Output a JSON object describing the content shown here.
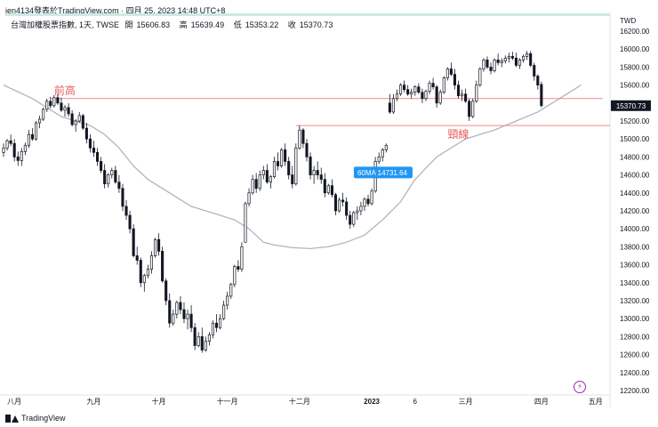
{
  "header": {
    "publisher": "jen4134發表於TradingView.com",
    "timestamp": "四月 25, 2023 14:48 UTC+8"
  },
  "legend": {
    "symbol": "台灣加權股票指數, 1天, TWSE",
    "open_label": "開",
    "open_value": "15606.83",
    "high_label": "高",
    "high_value": "15639.49",
    "low_label": "低",
    "low_value": "15353.22",
    "close_label": "收",
    "close_value": "15370.73"
  },
  "currency": "TWD",
  "footer": {
    "brand": "TradingView"
  },
  "icons": {
    "brand_logo": "tradingview-logo-icon",
    "alert": "lightning-icon"
  },
  "colors": {
    "up": "#ffffff",
    "down": "#131722",
    "wick": "#131722",
    "ma_line": "#b2b5be",
    "hline": "#f08a8a",
    "hline_text": "#e55b5b",
    "ma_label_bg": "#2196f3",
    "price_label_bg": "#131722"
  },
  "chart_data": {
    "type": "candlestick",
    "y_axis": {
      "ticks": [
        12200,
        12400,
        12600,
        12800,
        13000,
        13200,
        13400,
        13600,
        13800,
        14000,
        14200,
        14400,
        14600,
        14800,
        15000,
        15200,
        15400,
        15600,
        15800,
        16000,
        16200
      ],
      "ylim": [
        12150,
        16250
      ]
    },
    "x_axis": {
      "ticks": [
        {
          "label": "八月",
          "idx": 3
        },
        {
          "label": "九月",
          "idx": 25
        },
        {
          "label": "十月",
          "idx": 43
        },
        {
          "label": "十一月",
          "idx": 62
        },
        {
          "label": "十二月",
          "idx": 82
        },
        {
          "label": "2023",
          "idx": 102
        },
        {
          "label": "6",
          "idx": 114
        },
        {
          "label": "三月",
          "idx": 128
        },
        {
          "label": "四月",
          "idx": 149
        },
        {
          "label": "五月",
          "idx": 164
        }
      ],
      "xlim": [
        0,
        168
      ]
    },
    "last_price": {
      "value": 15370.73,
      "label": "15370.73"
    },
    "moving_average": {
      "name": "60MA",
      "value_label": "14731.64",
      "value": 14731.64,
      "label_idx": 100,
      "points": [
        [
          0,
          15600
        ],
        [
          8,
          15450
        ],
        [
          12,
          15350
        ],
        [
          16,
          15250
        ],
        [
          20,
          15200
        ],
        [
          24,
          15150
        ],
        [
          28,
          15050
        ],
        [
          32,
          14900
        ],
        [
          36,
          14700
        ],
        [
          40,
          14550
        ],
        [
          44,
          14450
        ],
        [
          48,
          14350
        ],
        [
          52,
          14250
        ],
        [
          56,
          14200
        ],
        [
          60,
          14150
        ],
        [
          64,
          14100
        ],
        [
          68,
          14000
        ],
        [
          72,
          13850
        ],
        [
          75,
          13820
        ],
        [
          80,
          13790
        ],
        [
          85,
          13780
        ],
        [
          90,
          13800
        ],
        [
          95,
          13850
        ],
        [
          100,
          13930
        ],
        [
          105,
          14100
        ],
        [
          110,
          14300
        ],
        [
          114,
          14550
        ],
        [
          120,
          14800
        ],
        [
          128,
          15000
        ],
        [
          136,
          15100
        ],
        [
          142,
          15200
        ],
        [
          148,
          15300
        ],
        [
          154,
          15450
        ],
        [
          158,
          15550
        ],
        [
          160,
          15600
        ]
      ]
    },
    "hlines": [
      {
        "label": "前高",
        "value": 15450,
        "from_idx": 13,
        "to_idx": 166,
        "label_idx": 14
      },
      {
        "label": "頸線",
        "value": 15150,
        "from_idx": 81,
        "to_idx": 171,
        "label_idx": 123
      }
    ],
    "candles": [
      [
        0,
        14850,
        14950,
        14800,
        14900
      ],
      [
        1,
        14900,
        15000,
        14870,
        14980
      ],
      [
        2,
        14980,
        15050,
        14920,
        14950
      ],
      [
        3,
        14950,
        15000,
        14750,
        14800
      ],
      [
        4,
        14800,
        14860,
        14700,
        14760
      ],
      [
        5,
        14760,
        14900,
        14700,
        14860
      ],
      [
        6,
        14860,
        14960,
        14820,
        14930
      ],
      [
        7,
        14930,
        15100,
        14900,
        15050
      ],
      [
        8,
        15050,
        15120,
        14980,
        15000
      ],
      [
        9,
        15000,
        15200,
        14980,
        15180
      ],
      [
        10,
        15180,
        15260,
        15120,
        15220
      ],
      [
        11,
        15220,
        15350,
        15200,
        15330
      ],
      [
        12,
        15330,
        15450,
        15300,
        15420
      ],
      [
        13,
        15420,
        15470,
        15340,
        15370
      ],
      [
        14,
        15370,
        15490,
        15350,
        15460
      ],
      [
        15,
        15460,
        15500,
        15380,
        15400
      ],
      [
        16,
        15400,
        15460,
        15300,
        15320
      ],
      [
        17,
        15320,
        15380,
        15250,
        15350
      ],
      [
        18,
        15350,
        15400,
        15250,
        15280
      ],
      [
        19,
        15280,
        15320,
        15140,
        15160
      ],
      [
        20,
        15160,
        15220,
        15080,
        15200
      ],
      [
        21,
        15200,
        15300,
        15180,
        15260
      ],
      [
        22,
        15260,
        15280,
        15100,
        15120
      ],
      [
        23,
        15120,
        15180,
        14950,
        15000
      ],
      [
        24,
        15000,
        15050,
        14850,
        14900
      ],
      [
        25,
        14900,
        14980,
        14800,
        14850
      ],
      [
        26,
        14850,
        14900,
        14700,
        14750
      ],
      [
        27,
        14750,
        14800,
        14620,
        14650
      ],
      [
        28,
        14650,
        14720,
        14450,
        14500
      ],
      [
        29,
        14500,
        14620,
        14460,
        14600
      ],
      [
        30,
        14600,
        14680,
        14560,
        14650
      ],
      [
        31,
        14650,
        14700,
        14500,
        14520
      ],
      [
        32,
        14520,
        14600,
        14400,
        14450
      ],
      [
        33,
        14450,
        14500,
        14200,
        14250
      ],
      [
        34,
        14250,
        14320,
        14100,
        14150
      ],
      [
        35,
        14150,
        14200,
        13950,
        14000
      ],
      [
        36,
        14000,
        14050,
        13680,
        13700
      ],
      [
        37,
        13700,
        13800,
        13600,
        13650
      ],
      [
        38,
        13650,
        13680,
        13350,
        13400
      ],
      [
        39,
        13400,
        13500,
        13300,
        13480
      ],
      [
        40,
        13480,
        13600,
        13450,
        13550
      ],
      [
        41,
        13550,
        13750,
        13500,
        13700
      ],
      [
        42,
        13700,
        13900,
        13680,
        13880
      ],
      [
        43,
        13880,
        13950,
        13700,
        13750
      ],
      [
        44,
        13750,
        13800,
        13400,
        13420
      ],
      [
        45,
        13420,
        13450,
        13150,
        13200
      ],
      [
        46,
        13200,
        13280,
        12900,
        12950
      ],
      [
        47,
        12950,
        13100,
        12920,
        13050
      ],
      [
        48,
        13050,
        13200,
        13000,
        13180
      ],
      [
        49,
        13180,
        13250,
        13050,
        13100
      ],
      [
        50,
        13100,
        13180,
        12950,
        13000
      ],
      [
        51,
        13000,
        13100,
        12880,
        13050
      ],
      [
        52,
        13050,
        13150,
        12850,
        12900
      ],
      [
        53,
        12900,
        12950,
        12650,
        12700
      ],
      [
        54,
        12700,
        12850,
        12680,
        12800
      ],
      [
        55,
        12800,
        12900,
        12620,
        12650
      ],
      [
        56,
        12650,
        12800,
        12630,
        12750
      ],
      [
        57,
        12750,
        12850,
        12700,
        12820
      ],
      [
        58,
        12820,
        12980,
        12780,
        12950
      ],
      [
        59,
        12950,
        13050,
        12850,
        12900
      ],
      [
        60,
        12900,
        13050,
        12880,
        13000
      ],
      [
        61,
        13000,
        13200,
        12980,
        13150
      ],
      [
        62,
        13150,
        13300,
        13100,
        13250
      ],
      [
        63,
        13250,
        13400,
        13220,
        13380
      ],
      [
        64,
        13380,
        13600,
        13350,
        13580
      ],
      [
        65,
        13580,
        13650,
        13520,
        13550
      ],
      [
        66,
        13550,
        13850,
        13520,
        13800
      ],
      [
        67,
        13850,
        14300,
        13850,
        14280
      ],
      [
        68,
        14280,
        14450,
        14250,
        14400
      ],
      [
        69,
        14400,
        14600,
        14380,
        14550
      ],
      [
        70,
        14550,
        14620,
        14400,
        14450
      ],
      [
        71,
        14450,
        14650,
        14420,
        14600
      ],
      [
        72,
        14600,
        14700,
        14550,
        14650
      ],
      [
        73,
        14650,
        14720,
        14500,
        14520
      ],
      [
        74,
        14520,
        14600,
        14450,
        14580
      ],
      [
        75,
        14580,
        14800,
        14560,
        14750
      ],
      [
        76,
        14750,
        14850,
        14650,
        14700
      ],
      [
        77,
        14700,
        14900,
        14680,
        14880
      ],
      [
        78,
        14880,
        14950,
        14700,
        14750
      ],
      [
        79,
        14750,
        14800,
        14550,
        14600
      ],
      [
        80,
        14600,
        14700,
        14450,
        14500
      ],
      [
        81,
        14500,
        14950,
        14480,
        14900
      ],
      [
        82,
        14900,
        15150,
        14880,
        15100
      ],
      [
        83,
        15100,
        15120,
        14900,
        14950
      ],
      [
        84,
        14950,
        15000,
        14750,
        14800
      ],
      [
        85,
        14800,
        14850,
        14550,
        14600
      ],
      [
        86,
        14600,
        14700,
        14500,
        14650
      ],
      [
        87,
        14650,
        14750,
        14550,
        14600
      ],
      [
        88,
        14600,
        14680,
        14500,
        14550
      ],
      [
        89,
        14550,
        14620,
        14350,
        14400
      ],
      [
        90,
        14400,
        14500,
        14380,
        14480
      ],
      [
        91,
        14480,
        14550,
        14350,
        14380
      ],
      [
        92,
        14380,
        14400,
        14150,
        14200
      ],
      [
        93,
        14200,
        14350,
        14180,
        14320
      ],
      [
        94,
        14320,
        14400,
        14250,
        14300
      ],
      [
        95,
        14300,
        14350,
        14100,
        14150
      ],
      [
        96,
        14150,
        14200,
        14000,
        14050
      ],
      [
        97,
        14050,
        14200,
        14020,
        14180
      ],
      [
        98,
        14180,
        14250,
        14100,
        14200
      ],
      [
        99,
        14200,
        14300,
        14150,
        14250
      ],
      [
        100,
        14250,
        14350,
        14200,
        14330
      ],
      [
        101,
        14330,
        14380,
        14250,
        14280
      ],
      [
        102,
        14280,
        14450,
        14260,
        14420
      ],
      [
        103,
        14420,
        14800,
        14400,
        14750
      ],
      [
        104,
        14750,
        14850,
        14720,
        14800
      ],
      [
        105,
        14800,
        14900,
        14750,
        14880
      ],
      [
        106,
        14880,
        14950,
        14850,
        14930
      ],
      [
        107,
        15400,
        15500,
        15280,
        15300
      ],
      [
        108,
        15300,
        15500,
        15280,
        15450
      ],
      [
        109,
        15450,
        15550,
        15420,
        15500
      ],
      [
        110,
        15500,
        15620,
        15480,
        15600
      ],
      [
        111,
        15600,
        15650,
        15520,
        15550
      ],
      [
        112,
        15550,
        15600,
        15480,
        15500
      ],
      [
        113,
        15500,
        15560,
        15450,
        15520
      ],
      [
        114,
        15520,
        15600,
        15480,
        15580
      ],
      [
        115,
        15580,
        15620,
        15500,
        15520
      ],
      [
        116,
        15520,
        15560,
        15400,
        15450
      ],
      [
        117,
        15450,
        15550,
        15420,
        15530
      ],
      [
        118,
        15530,
        15650,
        15500,
        15620
      ],
      [
        119,
        15620,
        15680,
        15550,
        15580
      ],
      [
        120,
        15580,
        15600,
        15350,
        15400
      ],
      [
        121,
        15400,
        15550,
        15380,
        15520
      ],
      [
        122,
        15520,
        15700,
        15500,
        15680
      ],
      [
        123,
        15680,
        15800,
        15650,
        15780
      ],
      [
        124,
        15780,
        15850,
        15700,
        15720
      ],
      [
        125,
        15720,
        15780,
        15550,
        15600
      ],
      [
        126,
        15600,
        15650,
        15450,
        15480
      ],
      [
        127,
        15480,
        15550,
        15420,
        15500
      ],
      [
        128,
        15500,
        15560,
        15400,
        15420
      ],
      [
        129,
        15420,
        15450,
        15200,
        15250
      ],
      [
        130,
        15250,
        15450,
        15230,
        15420
      ],
      [
        131,
        15420,
        15650,
        15400,
        15600
      ],
      [
        132,
        15600,
        15800,
        15580,
        15780
      ],
      [
        133,
        15780,
        15900,
        15750,
        15880
      ],
      [
        134,
        15880,
        15920,
        15780,
        15800
      ],
      [
        135,
        15800,
        15850,
        15720,
        15760
      ],
      [
        136,
        15760,
        15900,
        15740,
        15880
      ],
      [
        137,
        15880,
        15950,
        15820,
        15850
      ],
      [
        138,
        15850,
        15900,
        15800,
        15870
      ],
      [
        139,
        15870,
        15930,
        15840,
        15900
      ],
      [
        140,
        15900,
        15960,
        15850,
        15920
      ],
      [
        141,
        15920,
        15970,
        15880,
        15900
      ],
      [
        142,
        15900,
        15960,
        15800,
        15820
      ],
      [
        143,
        15820,
        15900,
        15780,
        15880
      ],
      [
        144,
        15880,
        15940,
        15850,
        15920
      ],
      [
        145,
        15920,
        15980,
        15880,
        15950
      ],
      [
        146,
        15950,
        15980,
        15800,
        15820
      ],
      [
        147,
        15820,
        15850,
        15650,
        15700
      ],
      [
        148,
        15700,
        15720,
        15550,
        15600
      ],
      [
        149,
        15606.83,
        15639.49,
        15353.22,
        15370.73
      ]
    ]
  }
}
